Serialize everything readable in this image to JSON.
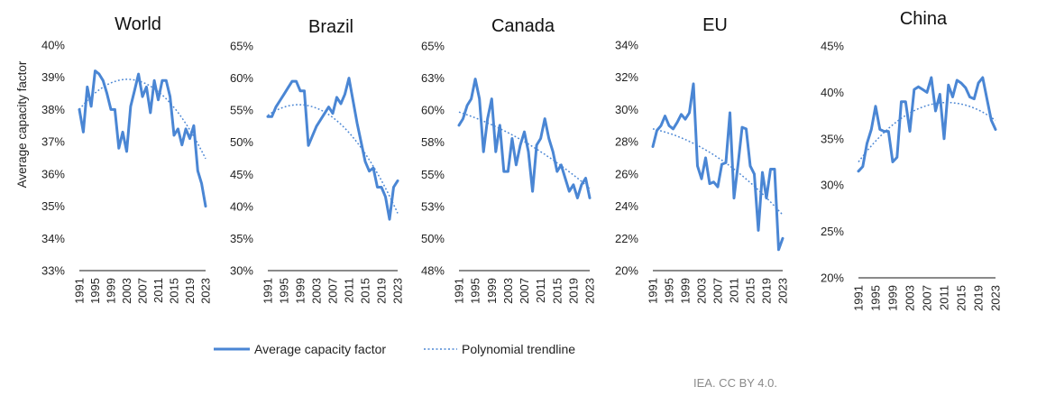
{
  "figure": {
    "ylabel": "Average capacity factor",
    "legend": {
      "actual": "Average capacity factor",
      "trend": "Polynomial trendline"
    },
    "source": "IEA. CC BY 4.0.",
    "colors": {
      "line": "#4a86d4",
      "trend": "#4a86d4",
      "axis": "#444444"
    }
  },
  "chart_data": [
    {
      "type": "line",
      "title": "World",
      "xticks": [
        "1991",
        "1995",
        "1999",
        "2003",
        "2007",
        "2011",
        "2015",
        "2019",
        "2023"
      ],
      "yticks": [
        "40%",
        "39%",
        "38%",
        "37%",
        "36%",
        "35%",
        "34%",
        "33%"
      ],
      "ylim": [
        33,
        40
      ],
      "xlim": [
        1991,
        2023
      ],
      "series": [
        {
          "name": "Average capacity factor",
          "x": [
            1991,
            1992,
            1993,
            1994,
            1995,
            1996,
            1997,
            1998,
            1999,
            2000,
            2001,
            2002,
            2003,
            2004,
            2005,
            2006,
            2007,
            2008,
            2009,
            2010,
            2011,
            2012,
            2013,
            2014,
            2015,
            2016,
            2017,
            2018,
            2019,
            2020,
            2021,
            2022,
            2023
          ],
          "values": [
            38.0,
            37.3,
            38.7,
            38.1,
            39.2,
            39.1,
            38.9,
            38.5,
            38.0,
            38.0,
            36.8,
            37.3,
            36.7,
            38.1,
            38.6,
            39.1,
            38.4,
            38.7,
            37.9,
            38.9,
            38.3,
            38.9,
            38.9,
            38.4,
            37.2,
            37.4,
            36.9,
            37.4,
            37.1,
            37.5,
            36.1,
            35.7,
            35.0
          ]
        },
        {
          "name": "Polynomial trendline",
          "trend": true,
          "x": [
            1991,
            2023
          ],
          "coef": [
            38.0,
            0.1536,
            -0.00629
          ]
        }
      ]
    },
    {
      "type": "line",
      "title": "Brazil",
      "xticks": [
        "1991",
        "1995",
        "1999",
        "2003",
        "2007",
        "2011",
        "2015",
        "2019",
        "2023"
      ],
      "yticks": [
        "65%",
        "60%",
        "55%",
        "50%",
        "45%",
        "40%",
        "35%",
        "30%"
      ],
      "ylim": [
        30,
        65
      ],
      "xlim": [
        1991,
        2023
      ],
      "series": [
        {
          "name": "Average capacity factor",
          "x": [
            1991,
            1992,
            1993,
            1994,
            1995,
            1996,
            1997,
            1998,
            1999,
            2000,
            2001,
            2002,
            2003,
            2004,
            2005,
            2006,
            2007,
            2008,
            2009,
            2010,
            2011,
            2012,
            2013,
            2014,
            2015,
            2016,
            2017,
            2018,
            2019,
            2020,
            2021,
            2022,
            2023
          ],
          "values": [
            54.0,
            54.0,
            55.5,
            56.5,
            57.5,
            58.5,
            59.5,
            59.5,
            58.0,
            58.0,
            49.5,
            51.0,
            52.5,
            53.5,
            54.5,
            55.5,
            54.5,
            57.0,
            56.0,
            57.5,
            60.0,
            56.5,
            53.0,
            50.0,
            47.0,
            45.5,
            46.0,
            43.0,
            43.0,
            41.5,
            38.0,
            43.0,
            44.0
          ]
        },
        {
          "name": "Polynomial trendline",
          "trend": true,
          "x": [
            1991,
            2023
          ],
          "coef": [
            54.2,
            0.435,
            -0.0285
          ]
        }
      ]
    },
    {
      "type": "line",
      "title": "Canada",
      "xticks": [
        "1991",
        "1995",
        "1999",
        "2003",
        "2007",
        "2011",
        "2015",
        "2019",
        "2023"
      ],
      "yticks": [
        "65%",
        "63%",
        "60%",
        "58%",
        "55%",
        "53%",
        "50%",
        "48%"
      ],
      "ylim": [
        48,
        65
      ],
      "xlim": [
        1991,
        2023
      ],
      "series": [
        {
          "name": "Average capacity factor",
          "x": [
            1991,
            1992,
            1993,
            1994,
            1995,
            1996,
            1997,
            1998,
            1999,
            2000,
            2001,
            2002,
            2003,
            2004,
            2005,
            2006,
            2007,
            2008,
            2009,
            2010,
            2011,
            2012,
            2013,
            2014,
            2015,
            2016,
            2017,
            2018,
            2019,
            2020,
            2021,
            2022,
            2023
          ],
          "values": [
            59.0,
            59.5,
            60.5,
            61.0,
            62.5,
            61.0,
            57.0,
            59.5,
            61.0,
            57.0,
            59.0,
            55.5,
            55.5,
            58.0,
            56.0,
            57.5,
            58.5,
            57.0,
            54.0,
            57.5,
            58.0,
            59.5,
            58.0,
            57.0,
            55.5,
            56.0,
            55.0,
            54.0,
            54.5,
            53.5,
            54.5,
            55.0,
            53.5
          ]
        },
        {
          "name": "Polynomial trendline",
          "trend": true,
          "x": [
            1991,
            2023
          ],
          "coef": [
            60.0,
            -0.1,
            -0.0025
          ]
        }
      ]
    },
    {
      "type": "line",
      "title": "EU",
      "xticks": [
        "1991",
        "1995",
        "1999",
        "2003",
        "2007",
        "2011",
        "2015",
        "2019",
        "2023"
      ],
      "yticks": [
        "34%",
        "32%",
        "30%",
        "28%",
        "26%",
        "24%",
        "22%",
        "20%"
      ],
      "ylim": [
        20,
        34
      ],
      "xlim": [
        1991,
        2023
      ],
      "series": [
        {
          "name": "Average capacity factor",
          "x": [
            1991,
            1992,
            1993,
            1994,
            1995,
            1996,
            1997,
            1998,
            1999,
            2000,
            2001,
            2002,
            2003,
            2004,
            2005,
            2006,
            2007,
            2008,
            2009,
            2010,
            2011,
            2012,
            2013,
            2014,
            2015,
            2016,
            2017,
            2018,
            2019,
            2020,
            2021,
            2022,
            2023
          ],
          "values": [
            27.7,
            28.7,
            29.0,
            29.6,
            29.0,
            28.8,
            29.2,
            29.7,
            29.4,
            29.8,
            31.6,
            26.5,
            25.7,
            27.0,
            25.4,
            25.5,
            25.2,
            26.6,
            26.7,
            29.8,
            24.5,
            26.6,
            28.9,
            28.8,
            26.5,
            26.0,
            22.5,
            26.1,
            24.5,
            26.3,
            26.3,
            21.3,
            22.0
          ]
        },
        {
          "name": "Polynomial trendline",
          "trend": true,
          "x": [
            1991,
            2023
          ],
          "coef": [
            28.8,
            -0.055,
            -0.0035
          ]
        }
      ]
    },
    {
      "type": "line",
      "title": "China",
      "xticks": [
        "1991",
        "1995",
        "1999",
        "2003",
        "2007",
        "2011",
        "2015",
        "2019",
        "2023"
      ],
      "yticks": [
        "45%",
        "40%",
        "35%",
        "30%",
        "25%",
        "20%"
      ],
      "ylim": [
        20,
        45
      ],
      "xlim": [
        1991,
        2023
      ],
      "series": [
        {
          "name": "Average capacity factor",
          "x": [
            1991,
            1992,
            1993,
            1994,
            1995,
            1996,
            1997,
            1998,
            1999,
            2000,
            2001,
            2002,
            2003,
            2004,
            2005,
            2006,
            2007,
            2008,
            2009,
            2010,
            2011,
            2012,
            2013,
            2014,
            2015,
            2016,
            2017,
            2018,
            2019,
            2020,
            2021,
            2022,
            2023
          ],
          "values": [
            31.5,
            32.0,
            34.5,
            36.0,
            38.5,
            36.0,
            35.8,
            35.8,
            32.5,
            33.0,
            39.0,
            39.0,
            35.8,
            40.3,
            40.6,
            40.3,
            40.0,
            41.6,
            38.0,
            39.8,
            35.0,
            40.8,
            39.5,
            41.3,
            41.0,
            40.5,
            39.5,
            39.3,
            41.0,
            41.6,
            39.3,
            37.0,
            36.0
          ]
        },
        {
          "name": "Polynomial trendline",
          "trend": true,
          "x": [
            1991,
            2023
          ],
          "coef": [
            32.5,
            0.62,
            -0.015
          ]
        }
      ]
    }
  ]
}
